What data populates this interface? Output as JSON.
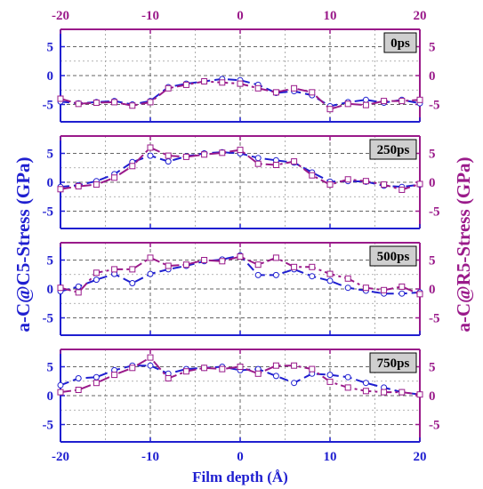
{
  "chart_data": {
    "type": "line",
    "xlabel": "Film depth (Å)",
    "ylabel_left": "a-C@C5-Stress (GPa)",
    "ylabel_right": "a-C@R5-Stress (GPa)",
    "xlim": [
      -20,
      20
    ],
    "ylim": [
      -8,
      8
    ],
    "xticks": [
      "-20",
      "-10",
      "0",
      "10",
      "20"
    ],
    "yticks": [
      "5",
      "0",
      "-5"
    ],
    "grid": true,
    "colors": {
      "c5": "#1f1fd0",
      "r5": "#9a1a8a",
      "grid": "#9a9a9a",
      "tag_bg": "#cfcfcf"
    },
    "x": [
      -20,
      -18,
      -16,
      -14,
      -12,
      -10,
      -8,
      -6,
      -4,
      -2,
      0,
      2,
      4,
      6,
      8,
      10,
      12,
      14,
      16,
      18,
      20
    ],
    "panels": [
      {
        "label": "0ps",
        "series": [
          {
            "values": [
              -4.5,
              -4.8,
              -4.6,
              -4.4,
              -5.0,
              -4.4,
              -2.0,
              -1.4,
              -1.0,
              -0.6,
              -0.8,
              -1.6,
              -3.0,
              -2.7,
              -3.4,
              -5.3,
              -4.6,
              -4.2,
              -4.7,
              -4.2,
              -4.8
            ]
          },
          {
            "values": [
              -4.0,
              -4.9,
              -4.7,
              -4.6,
              -5.2,
              -4.6,
              -2.2,
              -1.6,
              -1.0,
              -1.2,
              -1.4,
              -2.2,
              -2.9,
              -2.2,
              -2.9,
              -5.8,
              -4.9,
              -5.1,
              -4.4,
              -4.4,
              -4.2
            ]
          }
        ]
      },
      {
        "label": "250ps",
        "series": [
          {
            "values": [
              -0.8,
              -0.5,
              0.2,
              1.4,
              3.5,
              4.6,
              3.6,
              4.5,
              5.0,
              5.2,
              5.0,
              4.2,
              3.8,
              3.4,
              1.7,
              0.1,
              0.2,
              0.1,
              -0.6,
              -0.8,
              -0.4
            ]
          },
          {
            "values": [
              -1.2,
              -0.7,
              -0.4,
              0.8,
              2.8,
              6.0,
              4.6,
              4.4,
              4.8,
              5.1,
              5.6,
              3.2,
              3.0,
              3.6,
              1.2,
              -0.4,
              0.5,
              0.2,
              -0.4,
              -1.3,
              -0.3
            ]
          }
        ]
      },
      {
        "label": "500ps",
        "series": [
          {
            "values": [
              -0.4,
              0.4,
              1.6,
              2.6,
              1.0,
              2.6,
              3.4,
              4.0,
              4.8,
              5.1,
              5.8,
              2.4,
              2.4,
              3.4,
              2.2,
              1.4,
              0.2,
              -0.3,
              -0.8,
              -0.8,
              -0.6
            ]
          },
          {
            "values": [
              0.2,
              -0.6,
              2.8,
              3.4,
              3.4,
              5.4,
              4.0,
              4.2,
              5.0,
              4.8,
              5.6,
              4.2,
              5.4,
              3.8,
              3.8,
              2.6,
              1.8,
              0.2,
              -0.2,
              0.4,
              -0.9
            ]
          }
        ]
      },
      {
        "label": "750ps",
        "series": [
          {
            "values": [
              1.8,
              3.0,
              3.2,
              4.4,
              5.2,
              5.2,
              3.8,
              4.6,
              4.8,
              5.0,
              4.4,
              4.6,
              3.4,
              2.2,
              3.8,
              3.6,
              3.2,
              2.2,
              1.4,
              0.6,
              0.2
            ]
          },
          {
            "values": [
              0.6,
              1.0,
              2.2,
              3.6,
              4.8,
              6.6,
              3.0,
              4.2,
              4.8,
              4.6,
              5.0,
              3.8,
              5.2,
              5.2,
              4.6,
              2.4,
              1.4,
              0.8,
              0.6,
              0.6,
              0.2
            ]
          }
        ]
      }
    ]
  }
}
